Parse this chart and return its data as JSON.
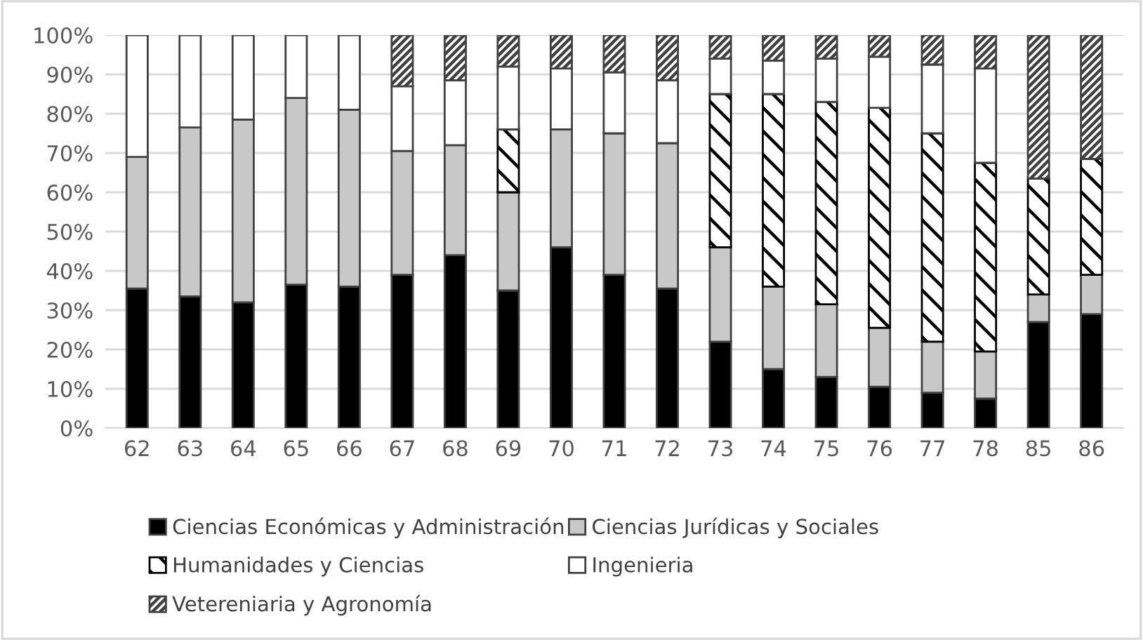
{
  "chart_data": {
    "type": "bar",
    "stacked": true,
    "categories": [
      "62",
      "63",
      "64",
      "65",
      "66",
      "67",
      "68",
      "69",
      "70",
      "71",
      "72",
      "73",
      "74",
      "75",
      "76",
      "77",
      "78",
      "85",
      "86"
    ],
    "series": [
      {
        "name": "Ciencias Económicas y Administración",
        "color": "#000000",
        "values": [
          35.5,
          33.5,
          32,
          36.5,
          36,
          39,
          44,
          35,
          46,
          39,
          35.5,
          22,
          15,
          13,
          10.5,
          9,
          7.5,
          27,
          29
        ]
      },
      {
        "name": "Ciencias Jurídicas y Sociales",
        "color": "#c8c8c8",
        "values": [
          33.5,
          43,
          46.5,
          47.5,
          45,
          31.5,
          28,
          25,
          30,
          36,
          37,
          24,
          21,
          18.5,
          15,
          13,
          12,
          7,
          10
        ]
      },
      {
        "name": "Humanidades y Ciencias",
        "color": "#000000",
        "values": [
          null,
          null,
          null,
          null,
          null,
          null,
          null,
          16,
          null,
          null,
          null,
          39,
          49,
          51.5,
          56,
          53,
          48,
          29.5,
          29.5
        ]
      },
      {
        "name": "Ingenieria",
        "color": "#ffffff",
        "values": [
          31,
          23.5,
          21.5,
          16,
          19,
          16.5,
          16.5,
          16,
          15.5,
          15.5,
          16,
          9,
          8.5,
          11,
          13,
          17.5,
          24,
          null,
          null
        ]
      },
      {
        "name": "Vetereniaria y Agronomía",
        "color": "#404040",
        "values": [
          null,
          null,
          null,
          null,
          null,
          13,
          11.5,
          8,
          8.5,
          9.5,
          11.5,
          6,
          6.5,
          6,
          5.5,
          7.5,
          8.5,
          36.5,
          31.5
        ]
      }
    ],
    "ylim": [
      0,
      100
    ],
    "yticks": [
      {
        "value": 0,
        "label": "0%"
      },
      {
        "value": 10,
        "label": "10%"
      },
      {
        "value": 20,
        "label": "20%"
      },
      {
        "value": 30,
        "label": "30%"
      },
      {
        "value": 40,
        "label": "40%"
      },
      {
        "value": 50,
        "label": "50%"
      },
      {
        "value": 60,
        "label": "60%"
      },
      {
        "value": 70,
        "label": "70%"
      },
      {
        "value": 80,
        "label": "80%"
      },
      {
        "value": 90,
        "label": "90%"
      },
      {
        "value": 100,
        "label": "100%"
      }
    ],
    "grid": "y",
    "legend": "bottom"
  }
}
